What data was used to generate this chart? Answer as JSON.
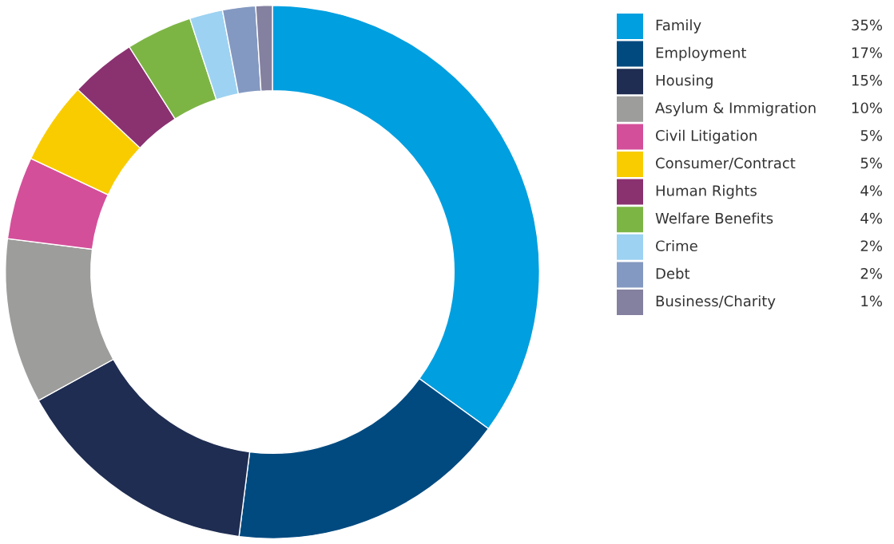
{
  "chart_data": {
    "type": "donut",
    "categories": [
      "Family",
      "Employment",
      "Housing",
      "Asylum & Immigration",
      "Civil Litigation",
      "Consumer/Contract",
      "Human Rights",
      "Welfare Benefits",
      "Crime",
      "Debt",
      "Business/Charity"
    ],
    "values": [
      35,
      17,
      15,
      10,
      5,
      5,
      4,
      4,
      2,
      2,
      1
    ],
    "value_labels": [
      "35%",
      "17%",
      "15%",
      "10%",
      "5%",
      "5%",
      "4%",
      "4%",
      "2%",
      "2%",
      "1%"
    ],
    "colors": [
      "#009fe0",
      "#004a80",
      "#1f2d52",
      "#9d9d9c",
      "#d44f9a",
      "#f9cc00",
      "#8a3170",
      "#7db545",
      "#9dd2f2",
      "#8499c1",
      "#84809f"
    ],
    "legend": "right"
  }
}
